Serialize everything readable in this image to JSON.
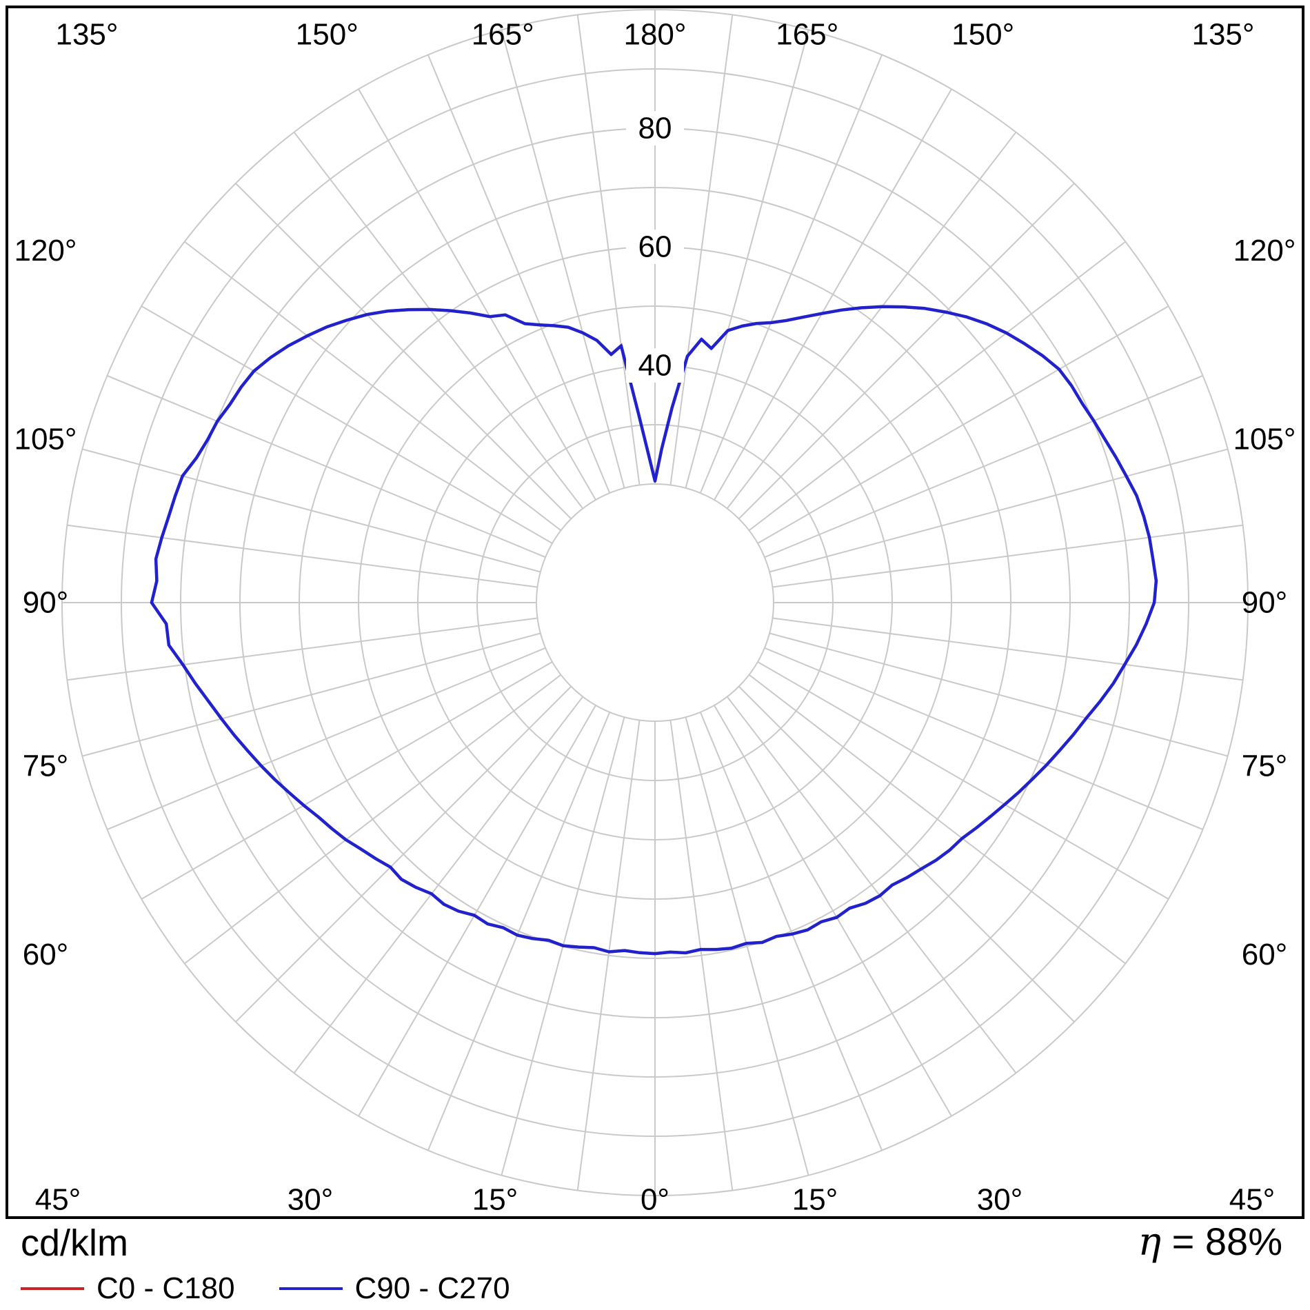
{
  "footer": {
    "unit_label": "cd/klm",
    "eta_symbol": "η",
    "eta_rest": " = 88%"
  },
  "legend": [
    {
      "label": "C0 - C180",
      "color": "#cc2222"
    },
    {
      "label": "C90 - C270",
      "color": "#2222cc"
    }
  ],
  "colors": {
    "grid": "#c9c9c9",
    "border": "#000000",
    "background": "#ffffff"
  },
  "chart_data": {
    "type": "polar",
    "units": "cd/klm",
    "efficiency": "88%",
    "radial_axis": {
      "max": 100,
      "ring_step": 10,
      "inner_blank_radius": 20,
      "rings": [
        20,
        30,
        40,
        50,
        60,
        70,
        80,
        90,
        100
      ],
      "labeled_rings": [
        {
          "v": 40,
          "text": "40"
        },
        {
          "v": 60,
          "text": "60"
        },
        {
          "v": 80,
          "text": "80"
        }
      ]
    },
    "angular_axis": {
      "zero_position": "bottom",
      "spoke_step_deg": 7.5,
      "label_step_deg": 15,
      "labels": [
        {
          "deg": 0,
          "text": "0°"
        },
        {
          "deg": 15,
          "text": "15°"
        },
        {
          "deg": 30,
          "text": "30°"
        },
        {
          "deg": 45,
          "text": "45°"
        },
        {
          "deg": 60,
          "text": "60°"
        },
        {
          "deg": 75,
          "text": "75°"
        },
        {
          "deg": 90,
          "text": "90°"
        },
        {
          "deg": 105,
          "text": "105°"
        },
        {
          "deg": 120,
          "text": "120°"
        },
        {
          "deg": 135,
          "text": "135°"
        },
        {
          "deg": 150,
          "text": "150°"
        },
        {
          "deg": 165,
          "text": "165°"
        }
      ],
      "top_label": {
        "deg": 180,
        "text": "180°"
      }
    },
    "series": [
      {
        "name": "C0 - C180",
        "color": "#cc2222"
      },
      {
        "name": "C90 - C270",
        "color": "#2222cc"
      }
    ],
    "curve": {
      "name": "C90 - C270",
      "gamma_step_deg": 2.5,
      "gamma_max": 180,
      "right_values": [
        59.2,
        59.0,
        59.3,
        59.0,
        59.4,
        59.7,
        59.5,
        60.1,
        59.9,
        60.5,
        60.9,
        60.7,
        61.3,
        61.1,
        61.9,
        62.3,
        62.2,
        62.9,
        63.5,
        64.3,
        64.9,
        65.3,
        66.2,
        67.1,
        68.1,
        69.2,
        70.3,
        71.5,
        72.7,
        74.0,
        75.3,
        76.9,
        78.5,
        79.9,
        81.5,
        82.9,
        84.2,
        84.6,
        84.3,
        84.1,
        83.7,
        83.2,
        82.3,
        81.5,
        80.7,
        80.1,
        79.5,
        79.2,
        78.7,
        77.5,
        76.1,
        74.7,
        73.1,
        71.3,
        69.3,
        67.3,
        65.1,
        62.9,
        60.7,
        58.5,
        56.3,
        54.3,
        52.5,
        51.1,
        50.1,
        48.9,
        47.5,
        43.9,
        45.1,
        41.9,
        33.0,
        26.0,
        20.5
      ],
      "left_values": [
        59.2,
        59.1,
        58.9,
        59.4,
        59.1,
        59.5,
        59.9,
        59.7,
        60.3,
        60.7,
        60.5,
        61.1,
        60.9,
        61.7,
        62.1,
        61.9,
        62.7,
        63.3,
        63.1,
        63.9,
        64.7,
        65.7,
        66.5,
        67.3,
        68.4,
        69.5,
        70.7,
        71.9,
        73.1,
        74.4,
        75.7,
        77.1,
        78.7,
        80.3,
        82.3,
        82.5,
        84.9,
        84.1,
        84.5,
        83.9,
        83.3,
        82.9,
        82.5,
        81.1,
        80.3,
        79.9,
        79.1,
        78.7,
        78.1,
        76.9,
        75.5,
        73.9,
        72.3,
        70.5,
        68.7,
        66.7,
        64.5,
        62.3,
        60.1,
        57.9,
        55.7,
        54.7,
        51.9,
        50.7,
        49.7,
        48.7,
        47.1,
        45.3,
        42.5,
        43.7,
        32.0,
        25.0,
        20.5
      ]
    }
  }
}
